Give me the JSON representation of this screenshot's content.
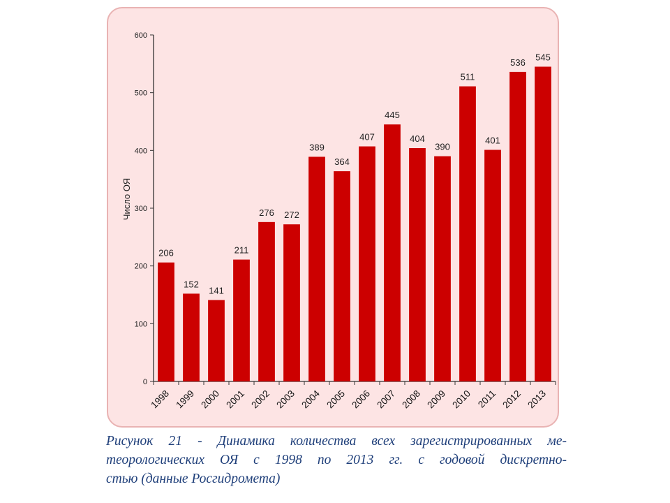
{
  "chart_data": {
    "type": "bar",
    "title": "",
    "xlabel": "",
    "ylabel": "Число ОЯ",
    "ylim": [
      0,
      600
    ],
    "yticks": [
      0,
      100,
      200,
      300,
      400,
      500,
      600
    ],
    "grid": false,
    "legend": "none",
    "bar_color": "#cc0000",
    "categories": [
      "1998",
      "1999",
      "2000",
      "2001",
      "2002",
      "2003",
      "2004",
      "2005",
      "2006",
      "2007",
      "2008",
      "2009",
      "2010",
      "2011",
      "2012",
      "2013"
    ],
    "values": [
      206,
      152,
      141,
      211,
      276,
      272,
      389,
      364,
      407,
      445,
      404,
      390,
      511,
      401,
      536,
      545
    ],
    "data_labels": [
      "206",
      "152",
      "141",
      "211",
      "276",
      "272",
      "389",
      "364",
      "407",
      "445",
      "404",
      "390",
      "511",
      "401",
      "536",
      "545"
    ]
  },
  "caption": {
    "lines": [
      "Рисунок 21 - Динамика количества всех зарегистрированных ме-",
      "теорологических ОЯ с 1998 по 2013 гг. с годовой дискретно-",
      "стью (данные Росгидромета)"
    ]
  }
}
